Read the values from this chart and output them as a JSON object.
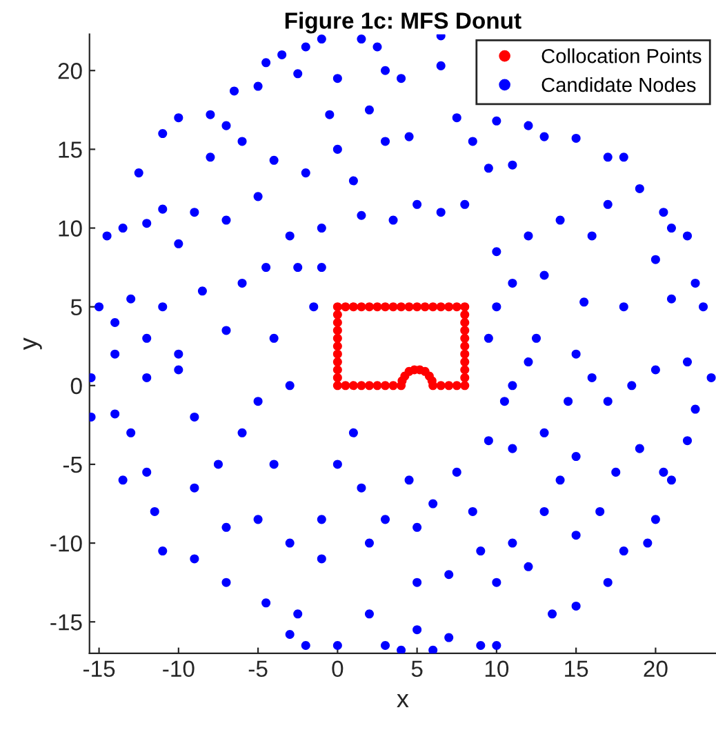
{
  "chart_data": {
    "type": "scatter",
    "title": "Figure 1c: MFS Donut",
    "xlabel": "x",
    "ylabel": "y",
    "xlim": [
      -15.6,
      23.8
    ],
    "ylim": [
      -17,
      22.3
    ],
    "xticks": [
      -15,
      -10,
      -5,
      0,
      5,
      10,
      15,
      20
    ],
    "yticks": [
      -15,
      -10,
      -5,
      0,
      5,
      10,
      15,
      20
    ],
    "grid": false,
    "legend": "top right",
    "marker": "circle",
    "series": [
      {
        "name": "Collocation Points",
        "color": "#ff0000",
        "x": [
          0,
          0.5,
          1,
          1.5,
          2,
          2.5,
          3,
          3.5,
          4,
          4.5,
          5,
          5.5,
          6,
          6.5,
          7,
          7.5,
          8,
          8,
          8,
          8,
          8,
          8,
          8,
          8,
          8,
          8,
          8,
          7.5,
          7,
          6.5,
          6,
          5.94,
          5.77,
          5.5,
          5.17,
          4.83,
          4.5,
          4.23,
          4.06,
          4,
          3.5,
          3,
          2.5,
          2,
          1.5,
          1,
          0.5,
          0,
          0,
          0,
          0,
          0,
          0,
          0,
          0,
          0,
          0
        ],
        "values": [
          5,
          5,
          5,
          5,
          5,
          5,
          5,
          5,
          5,
          5,
          5,
          5,
          5,
          5,
          5,
          5,
          5,
          4.5,
          4,
          3.5,
          3,
          2.5,
          2,
          1.5,
          1,
          0.5,
          0,
          0,
          0,
          0,
          0,
          0.3,
          0.6,
          0.9,
          1,
          1,
          0.9,
          0.6,
          0.3,
          0,
          0,
          0,
          0,
          0,
          0,
          0,
          0,
          0,
          0.5,
          1,
          1.5,
          2,
          2.5,
          3,
          3.5,
          4,
          4.5
        ]
      },
      {
        "name": "Candidate Nodes",
        "color": "#0000ff",
        "x": [
          -4.5,
          -3.5,
          -2,
          -1,
          1.5,
          2.5,
          6.5,
          0,
          -2.5,
          3,
          4,
          6.5,
          -10,
          -8,
          -6.5,
          -5,
          -7,
          -11,
          -12.5,
          -13.5,
          -14.5,
          -11,
          -9,
          -8,
          -6,
          -4,
          -2,
          0,
          1,
          3,
          4.5,
          2,
          -0.5,
          -12,
          -10,
          -13,
          -15,
          -14,
          -11,
          -8.5,
          -6,
          -4.5,
          -3,
          -7,
          -5,
          -1,
          1.5,
          3.5,
          5,
          6.5,
          8,
          9.5,
          11,
          8.5,
          10,
          7.5,
          12,
          13,
          15,
          17,
          18,
          19,
          20.5,
          21,
          22,
          20,
          22.5,
          23,
          21,
          18,
          15.5,
          13,
          11,
          10,
          12,
          14,
          16,
          17,
          23.5,
          22,
          20,
          18.5,
          17,
          16,
          14.5,
          12,
          11,
          13,
          11,
          9.5,
          15,
          17.5,
          19,
          20.5,
          22,
          21,
          19.5,
          18,
          17,
          15,
          13.5,
          15,
          13,
          11,
          12,
          10,
          9,
          10,
          7,
          6,
          4,
          5,
          3,
          2,
          0,
          -2,
          -3,
          -2.5,
          -4.5,
          -7,
          -9,
          -11,
          -11.5,
          -13.5,
          -15.5,
          -14,
          -15.5,
          -12,
          -10,
          -9,
          -7.5,
          -6,
          -4,
          -5,
          -3,
          -1,
          0,
          1.5,
          3,
          5,
          6,
          7.5,
          8.5,
          9,
          7,
          5,
          2,
          -1,
          -7,
          -9,
          -13,
          -12,
          -5,
          -3,
          -4,
          -7,
          -10,
          -12,
          -14,
          -1.5,
          -2.5,
          -1,
          9.5,
          10.5,
          10,
          12.5,
          15,
          14,
          22.5,
          20,
          16.5,
          4.5,
          1
        ],
        "values": [
          20.5,
          21,
          21.5,
          22,
          22,
          21.5,
          22.2,
          19.5,
          19.8,
          20,
          19.5,
          20.3,
          17,
          17.2,
          18.7,
          19,
          16.5,
          16,
          13.5,
          10,
          9.5,
          11.2,
          11,
          14.5,
          15.5,
          14.3,
          13.5,
          15,
          13,
          15.5,
          15.8,
          17.5,
          17.2,
          10.3,
          9,
          5.5,
          5,
          4,
          5,
          6,
          6.5,
          7.5,
          9.5,
          10.5,
          12,
          10,
          10.8,
          10.5,
          11.5,
          11,
          11.5,
          13.8,
          14,
          15.5,
          16.8,
          17,
          16.5,
          15.8,
          15.7,
          14.5,
          14.5,
          12.5,
          11,
          10,
          9.5,
          8,
          6.5,
          5,
          5.5,
          5,
          5.3,
          7,
          6.5,
          8.5,
          9.5,
          10.5,
          9.5,
          11.5,
          0.5,
          1.5,
          1,
          0,
          -1,
          0.5,
          -1,
          1.5,
          0,
          -3,
          -4,
          -3.5,
          -4.5,
          -5.5,
          -4,
          -5.5,
          -3.5,
          -6,
          -10,
          -10.5,
          -12.5,
          -14,
          -14.5,
          -9.5,
          -8,
          -10,
          -11.5,
          -12.5,
          -16.5,
          -16.5,
          -16,
          -16.8,
          -16.8,
          -15.5,
          -16.5,
          -14.5,
          -16.5,
          -16.5,
          -15.8,
          -14.5,
          -13.8,
          -12.5,
          -11,
          -10.5,
          -8,
          -6,
          -2,
          -1.8,
          0.5,
          0.5,
          1,
          -2,
          -5,
          -3,
          -5,
          -8.5,
          -10,
          -8.5,
          -5,
          -6.5,
          -8.5,
          -9,
          -7.5,
          -5.5,
          -8,
          -10.5,
          -12,
          -12.5,
          -10,
          -11,
          -9,
          -6.5,
          -3,
          -5.5,
          -1,
          0,
          3,
          3.5,
          2,
          3,
          2,
          5,
          7.5,
          7.5,
          3,
          -1,
          5,
          3,
          2,
          -6,
          -1.5,
          -8.5,
          -8,
          -6,
          -3
        ]
      }
    ]
  }
}
